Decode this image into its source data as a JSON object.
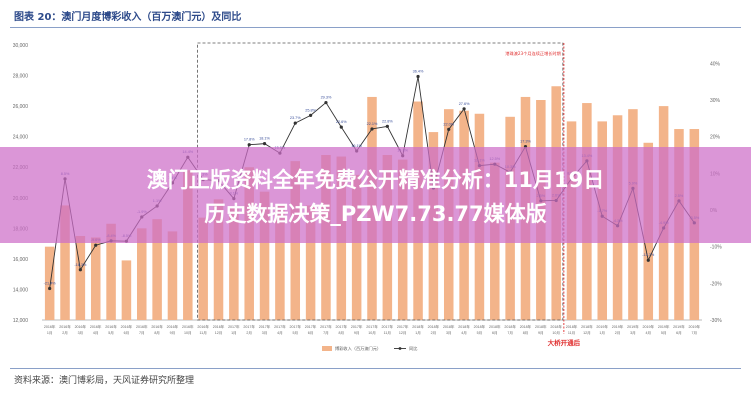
{
  "figure_title": "图表 20：澳门月度博彩收入（百万澳门元）及同比",
  "source": "资料来源：澳门博彩局，天风证券研究所整理",
  "overlay": {
    "line1": "澳门正版资料全年免费公开精准分析：11月19日",
    "line2": "历史数据决策_PZW7.73.77媒体版"
  },
  "chart_data": {
    "type": "bar",
    "legend": [
      "博彩收入（百万澳门元）",
      "同比"
    ],
    "legend_position": "bottom",
    "grid": false,
    "colors": {
      "bar": "#f3b48a",
      "line": "#333333",
      "dashed_box": "#555555",
      "marker_line": "#e03030",
      "annotation": "#e03030"
    },
    "y_left": {
      "ylim": [
        12000,
        30000
      ],
      "ticks": [
        "12,000",
        "14,000",
        "16,000",
        "18,000",
        "20,000",
        "22,000",
        "24,000",
        "26,000",
        "28,000",
        "30,000"
      ]
    },
    "y_right": {
      "ylim": [
        -30,
        45
      ],
      "ticks": [
        "-30%",
        "-20%",
        "-10%",
        "0%",
        "10%",
        "20%",
        "30%",
        "40%"
      ]
    },
    "categories": [
      [
        "2016年",
        "1月"
      ],
      [
        "2016年",
        "2月"
      ],
      [
        "2016年",
        "3月"
      ],
      [
        "2016年",
        "4月"
      ],
      [
        "2016年",
        "5月"
      ],
      [
        "2016年",
        "6月"
      ],
      [
        "2016年",
        "7月"
      ],
      [
        "2016年",
        "8月"
      ],
      [
        "2016年",
        "9月"
      ],
      [
        "2016年",
        "10月"
      ],
      [
        "2016年",
        "11月"
      ],
      [
        "2016年",
        "12月"
      ],
      [
        "2017年",
        "1月"
      ],
      [
        "2017年",
        "2月"
      ],
      [
        "2017年",
        "3月"
      ],
      [
        "2017年",
        "4月"
      ],
      [
        "2017年",
        "5月"
      ],
      [
        "2017年",
        "6月"
      ],
      [
        "2017年",
        "7月"
      ],
      [
        "2017年",
        "8月"
      ],
      [
        "2017年",
        "9月"
      ],
      [
        "2017年",
        "10月"
      ],
      [
        "2017年",
        "11月"
      ],
      [
        "2017年",
        "12月"
      ],
      [
        "2018年",
        "1月"
      ],
      [
        "2018年",
        "2月"
      ],
      [
        "2018年",
        "3月"
      ],
      [
        "2018年",
        "4月"
      ],
      [
        "2018年",
        "5月"
      ],
      [
        "2018年",
        "6月"
      ],
      [
        "2018年",
        "7月"
      ],
      [
        "2018年",
        "8月"
      ],
      [
        "2018年",
        "9月"
      ],
      [
        "2018年",
        "10月"
      ],
      [
        "2018年",
        "11月"
      ],
      [
        "2018年",
        "12月"
      ],
      [
        "2019年",
        "1月"
      ],
      [
        "2019年",
        "2月"
      ],
      [
        "2019年",
        "3月"
      ],
      [
        "2019年",
        "4月"
      ],
      [
        "2019年",
        "5月"
      ],
      [
        "2019年",
        "6月"
      ],
      [
        "2019年",
        "7月"
      ]
    ],
    "series": [
      {
        "name": "博彩收入（百万澳门元）",
        "values": [
          16800,
          19500,
          17500,
          17400,
          18300,
          15900,
          18000,
          18600,
          17800,
          21800,
          18700,
          19900,
          19300,
          22000,
          20400,
          19500,
          22400,
          19500,
          22800,
          22700,
          21500,
          26600,
          22800,
          22500,
          26300,
          24300,
          25800,
          25700,
          25500,
          22300,
          25300,
          26600,
          26400,
          27300,
          25000,
          26200,
          25000,
          25400,
          25800,
          23600,
          26000,
          24500,
          24500
        ]
      },
      {
        "name": "同比",
        "values": [
          -21.4,
          8.5,
          -16.3,
          -9.6,
          -8.4,
          -8.5,
          -1.9,
          1.1,
          7.4,
          14.4,
          8.3,
          8.0,
          3.1,
          17.8,
          18.1,
          15.5,
          23.7,
          25.8,
          29.3,
          22.6,
          16.1,
          22.1,
          22.8,
          14.8,
          36.4,
          6.0,
          22.0,
          27.6,
          12.1,
          12.5,
          10.3,
          17.3,
          2.5,
          2.6,
          8.6,
          13.4,
          -1.7,
          -4.3,
          5.9,
          -13.7,
          -4.9,
          2.5,
          -3.5
        ]
      }
    ],
    "annotations": {
      "dashed_box_label": "港珠澳23个月连续正增长时期",
      "bridge_label": "大桥开通后",
      "bridge_after_index": 33,
      "yoy_labels": [
        "-21.4%",
        "8.5%",
        "-16.3%",
        "-9.6%",
        "-8.4%",
        "-8.5%",
        "-1.9%",
        "1.1%",
        "7.4%",
        "14.4%",
        "8.3%",
        "8.0%",
        "3.1%",
        "17.8%",
        "18.1%",
        "15.5%",
        "23.7%",
        "25.8%",
        "29.3%",
        "22.6%",
        "16.1%",
        "22.1%",
        "22.8%",
        "14.8%",
        "36.4%",
        "6.0%",
        "22.0%",
        "27.6%",
        "12.1%",
        "12.5%",
        "10.3%",
        "17.3%",
        "2.5%",
        "2.6%",
        "8.6%",
        "13.4%",
        "-1.7%",
        "-4.3%",
        "5.9%",
        "-13.7%",
        "-4.9%",
        "2.5%",
        "-3.5%"
      ]
    }
  }
}
